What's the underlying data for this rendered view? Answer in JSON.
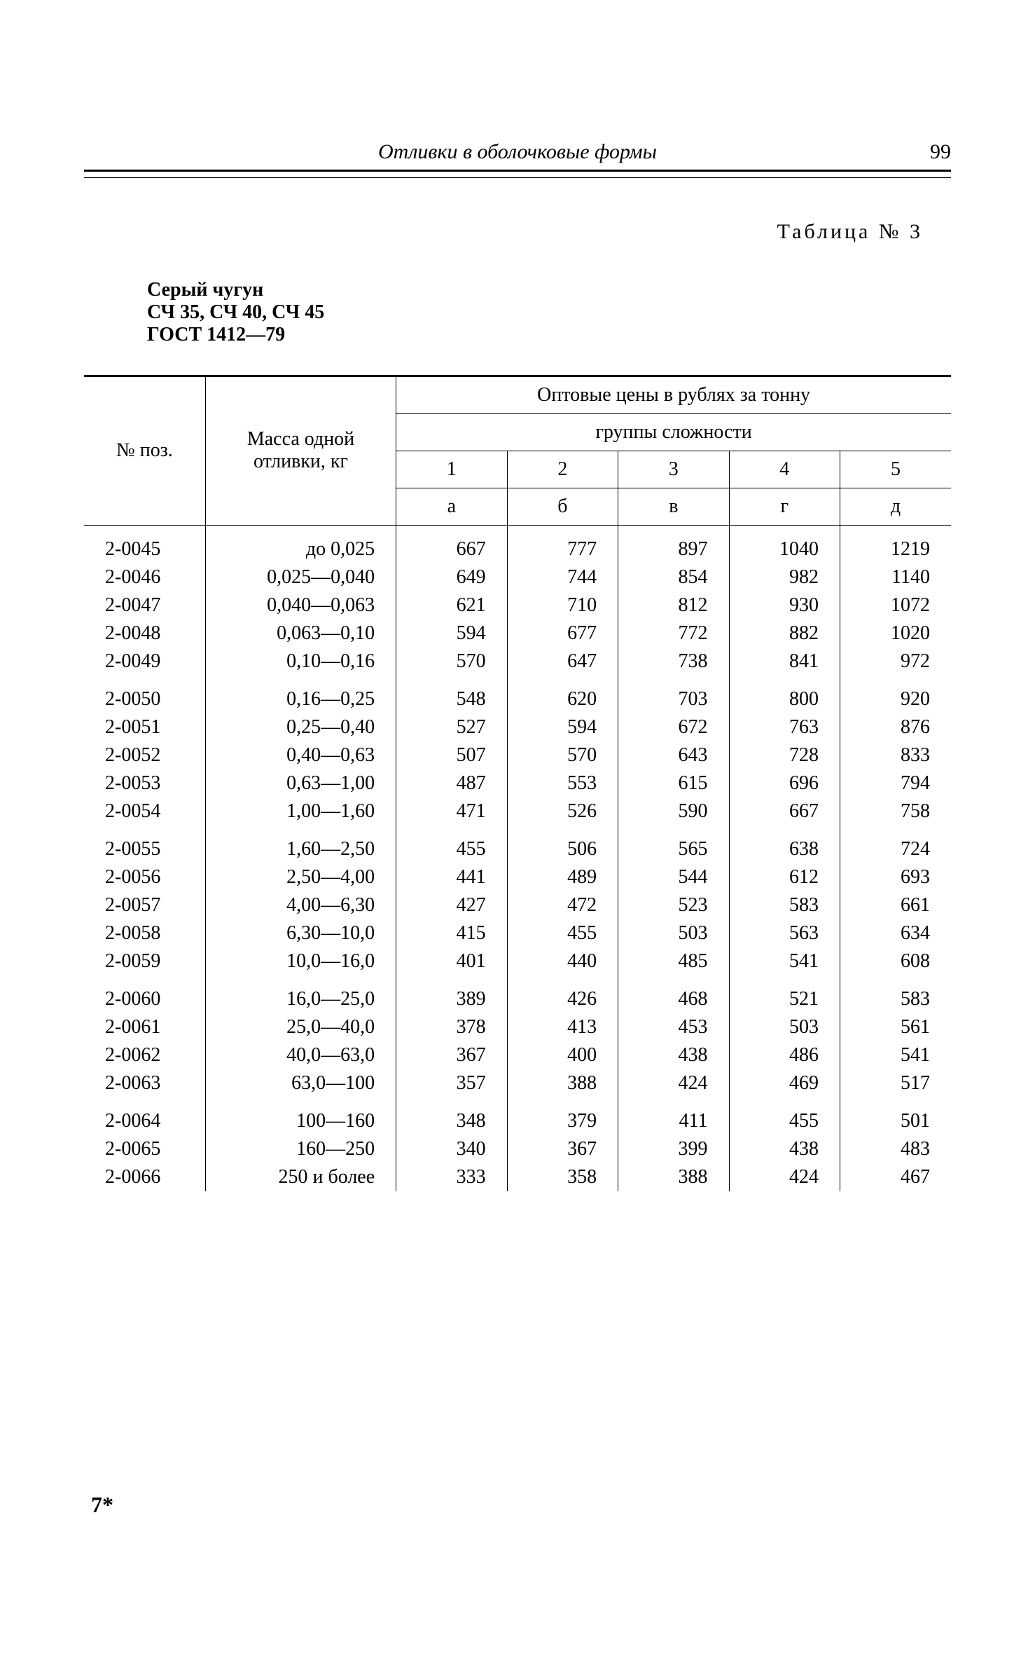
{
  "header": {
    "title": "Отливки в оболочковые формы",
    "page_number": "99"
  },
  "table_label": "Таблица № 3",
  "subtitle": {
    "line1": "Серый чугун",
    "line2": "СЧ 35, СЧ 40, СЧ 45",
    "line3": "ГОСТ 1412—79"
  },
  "columns": {
    "poz": "№ поз.",
    "mass": "Масса одной отливки, кг",
    "price_header": "Оптовые цены в рублях за тонну",
    "group_header": "группы сложности",
    "group_nums": [
      "1",
      "2",
      "3",
      "4",
      "5"
    ],
    "group_letters": [
      "а",
      "б",
      "в",
      "г",
      "д"
    ]
  },
  "rows": [
    {
      "poz": "2-0045",
      "mass": "до 0,025",
      "v": [
        "667",
        "777",
        "897",
        "1040",
        "1219"
      ]
    },
    {
      "poz": "2-0046",
      "mass": "0,025—0,040",
      "v": [
        "649",
        "744",
        "854",
        "982",
        "1140"
      ]
    },
    {
      "poz": "2-0047",
      "mass": "0,040—0,063",
      "v": [
        "621",
        "710",
        "812",
        "930",
        "1072"
      ]
    },
    {
      "poz": "2-0048",
      "mass": "0,063—0,10",
      "v": [
        "594",
        "677",
        "772",
        "882",
        "1020"
      ]
    },
    {
      "poz": "2-0049",
      "mass": "0,10—0,16",
      "v": [
        "570",
        "647",
        "738",
        "841",
        "972"
      ]
    },
    {
      "poz": "2-0050",
      "mass": "0,16—0,25",
      "v": [
        "548",
        "620",
        "703",
        "800",
        "920"
      ],
      "gap": true
    },
    {
      "poz": "2-0051",
      "mass": "0,25—0,40",
      "v": [
        "527",
        "594",
        "672",
        "763",
        "876"
      ]
    },
    {
      "poz": "2-0052",
      "mass": "0,40—0,63",
      "v": [
        "507",
        "570",
        "643",
        "728",
        "833"
      ]
    },
    {
      "poz": "2-0053",
      "mass": "0,63—1,00",
      "v": [
        "487",
        "553",
        "615",
        "696",
        "794"
      ]
    },
    {
      "poz": "2-0054",
      "mass": "1,00—1,60",
      "v": [
        "471",
        "526",
        "590",
        "667",
        "758"
      ]
    },
    {
      "poz": "2-0055",
      "mass": "1,60—2,50",
      "v": [
        "455",
        "506",
        "565",
        "638",
        "724"
      ],
      "gap": true
    },
    {
      "poz": "2-0056",
      "mass": "2,50—4,00",
      "v": [
        "441",
        "489",
        "544",
        "612",
        "693"
      ]
    },
    {
      "poz": "2-0057",
      "mass": "4,00—6,30",
      "v": [
        "427",
        "472",
        "523",
        "583",
        "661"
      ]
    },
    {
      "poz": "2-0058",
      "mass": "6,30—10,0",
      "v": [
        "415",
        "455",
        "503",
        "563",
        "634"
      ]
    },
    {
      "poz": "2-0059",
      "mass": "10,0—16,0",
      "v": [
        "401",
        "440",
        "485",
        "541",
        "608"
      ]
    },
    {
      "poz": "2-0060",
      "mass": "16,0—25,0",
      "v": [
        "389",
        "426",
        "468",
        "521",
        "583"
      ],
      "gap": true
    },
    {
      "poz": "2-0061",
      "mass": "25,0—40,0",
      "v": [
        "378",
        "413",
        "453",
        "503",
        "561"
      ]
    },
    {
      "poz": "2-0062",
      "mass": "40,0—63,0",
      "v": [
        "367",
        "400",
        "438",
        "486",
        "541"
      ]
    },
    {
      "poz": "2-0063",
      "mass": "63,0—100",
      "v": [
        "357",
        "388",
        "424",
        "469",
        "517"
      ]
    },
    {
      "poz": "2-0064",
      "mass": "100—160",
      "v": [
        "348",
        "379",
        "411",
        "455",
        "501"
      ],
      "gap": true
    },
    {
      "poz": "2-0065",
      "mass": "160—250",
      "v": [
        "340",
        "367",
        "399",
        "438",
        "483"
      ]
    },
    {
      "poz": "2-0066",
      "mass": "250 и более",
      "v": [
        "333",
        "358",
        "388",
        "424",
        "467"
      ]
    }
  ],
  "footer_mark": "7*"
}
